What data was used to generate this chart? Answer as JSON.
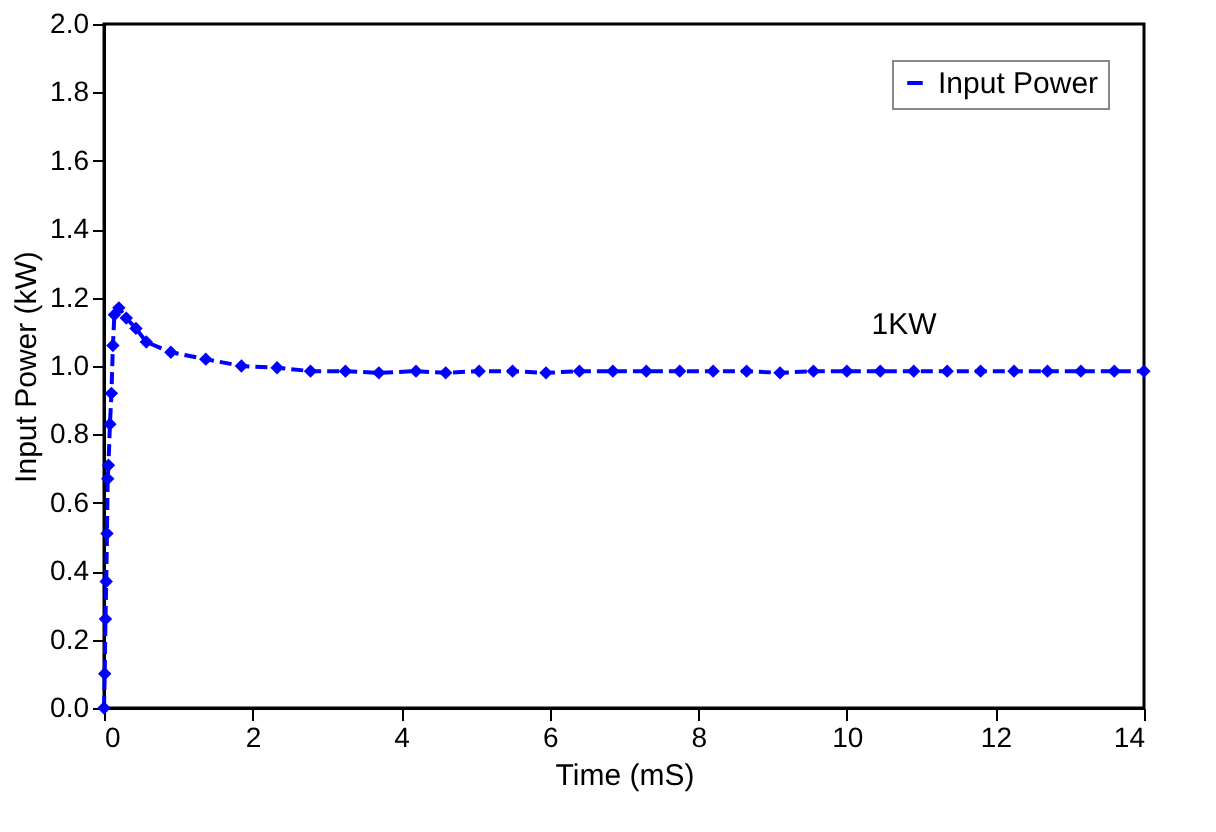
{
  "chart_data": {
    "type": "line",
    "xlabel": "Time (mS)",
    "ylabel": "Input Power (kW)",
    "xlim": [
      0,
      14
    ],
    "xticks": [
      0,
      2,
      4,
      6,
      8,
      10,
      12,
      14
    ],
    "ylim": [
      0,
      2.0
    ],
    "yticks": [
      {
        "value": 0,
        "label": "0.0"
      },
      {
        "value": 0.2,
        "label": "0.2"
      },
      {
        "value": 0.4,
        "label": "0.4"
      },
      {
        "value": 0.6,
        "label": "0.6"
      },
      {
        "value": 0.8,
        "label": "0.8"
      },
      {
        "value": 1.0,
        "label": "1.0"
      },
      {
        "value": 1.2,
        "label": "1.2"
      },
      {
        "value": 1.4,
        "label": "1.4"
      },
      {
        "value": 1.6,
        "label": "1.6"
      },
      {
        "value": 1.8,
        "label": "1.8"
      },
      {
        "value": 2.0,
        "label": "2.0"
      }
    ],
    "series": [
      {
        "name": "Input Power",
        "color": "#0000ff",
        "x": [
          0,
          0.01,
          0.02,
          0.03,
          0.04,
          0.05,
          0.06,
          0.08,
          0.1,
          0.12,
          0.14,
          0.2,
          0.3,
          0.43,
          0.57,
          0.9,
          1.37,
          1.85,
          2.33,
          2.78,
          3.25,
          3.7,
          4.2,
          4.6,
          5.05,
          5.5,
          5.95,
          6.4,
          6.85,
          7.3,
          7.75,
          8.2,
          8.65,
          9.1,
          9.55,
          10.0,
          10.45,
          10.9,
          11.35,
          11.8,
          12.25,
          12.7,
          13.15,
          13.6,
          14.0
        ],
        "values": [
          0,
          0.1,
          0.26,
          0.37,
          0.51,
          0.67,
          0.71,
          0.83,
          0.92,
          1.06,
          1.15,
          1.17,
          1.14,
          1.11,
          1.07,
          1.04,
          1.02,
          1.0,
          0.995,
          0.985,
          0.985,
          0.98,
          0.985,
          0.98,
          0.985,
          0.985,
          0.98,
          0.985,
          0.985,
          0.985,
          0.985,
          0.985,
          0.985,
          0.98,
          0.985,
          0.985,
          0.985,
          0.985,
          0.985,
          0.985,
          0.985,
          0.985,
          0.985,
          0.985,
          0.985
        ]
      }
    ],
    "annotations": [
      "1KW"
    ],
    "marker": "diamond",
    "line_style": "dashed",
    "grid": false,
    "legend": "top right"
  }
}
